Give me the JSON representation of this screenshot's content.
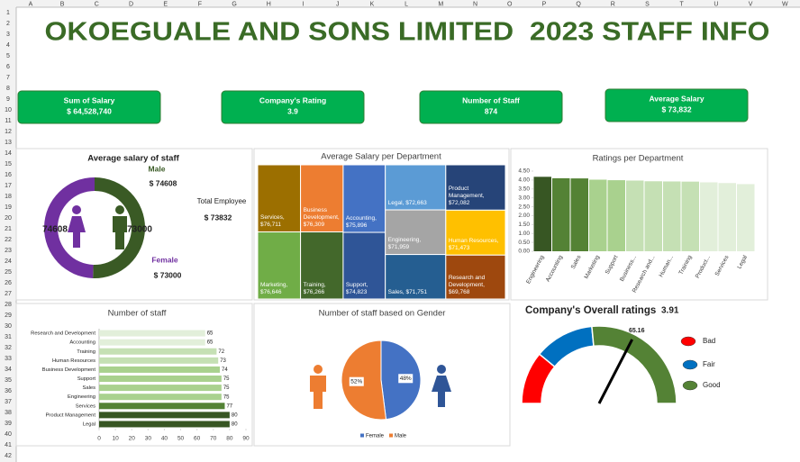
{
  "sheet": {
    "columns": [
      "A",
      "B",
      "C",
      "D",
      "E",
      "F",
      "G",
      "H",
      "I",
      "J",
      "K",
      "L",
      "M",
      "N",
      "O",
      "P",
      "Q",
      "R",
      "S",
      "T",
      "U",
      "V",
      "W"
    ],
    "rows": [
      1,
      2,
      3,
      4,
      5,
      6,
      7,
      8,
      9,
      10,
      11,
      12,
      13,
      14,
      15,
      16,
      17,
      18,
      19,
      20,
      21,
      22,
      23,
      24,
      25,
      26,
      27,
      28,
      29,
      30,
      31,
      32,
      33,
      34,
      35,
      36,
      37,
      38,
      39,
      40,
      41,
      42
    ]
  },
  "header": {
    "title": "OKOEGUALE AND SONS LIMITED  2023 STAFF INFO"
  },
  "kpis": [
    {
      "label": "Sum of Salary",
      "value": "$ 64,528,740"
    },
    {
      "label": "Company's Rating",
      "value": "3.9"
    },
    {
      "label": "Number of Staff",
      "value": "874"
    },
    {
      "label": "Average Salary",
      "value": "$ 73,832"
    }
  ],
  "chart_data": [
    {
      "type": "doughnut",
      "title": "Average salary of staff",
      "categories": [
        "Male",
        "Female"
      ],
      "values": [
        74608,
        73000
      ],
      "value_labels": [
        "$ 74608",
        "$ 73000"
      ],
      "colors": [
        "#3a5a25",
        "#7030a0"
      ],
      "annotations": [
        "Total Employee",
        "$ 73832"
      ]
    },
    {
      "type": "treemap",
      "title": "Average Salary per Department",
      "values": [
        76711,
        76646,
        76309,
        76266,
        75896,
        74823,
        72663,
        71959,
        71751,
        72082,
        71473,
        69768
      ],
      "value_labels": [
        "Services, $76,711",
        "Marketing, $76,646",
        "Business Development, $76,309",
        "Training, $76,266",
        "Accounting, $75,896",
        "Support, $74,823",
        "Legal, $72,663",
        "Engineering, $71,959",
        "Sales, $71,751",
        "Product Management, $72,082",
        "Human Resources, $71,473",
        "Research and Development, $69,768"
      ],
      "colors": [
        "#9c6f00",
        "#70ad47",
        "#ed7d31",
        "#43682b",
        "#4472c4",
        "#2f5597",
        "#5b9bd5",
        "#a5a5a5",
        "#255e91",
        "#264478",
        "#ffc000",
        "#9e480e"
      ]
    },
    {
      "type": "bar",
      "title": "Ratings per Department",
      "categories": [
        "Engineering",
        "Accounting",
        "Sales",
        "Marketing",
        "Support",
        "Business...",
        "Research and...",
        "Human...",
        "Training",
        "Product...",
        "Services",
        "Legal"
      ],
      "values": [
        4.18,
        4.1,
        4.09,
        4.02,
        3.99,
        3.97,
        3.93,
        3.92,
        3.91,
        3.87,
        3.83,
        3.77
      ],
      "colors": [
        "#375623",
        "#548235",
        "#548235",
        "#a9d18e",
        "#a9d18e",
        "#c5e0b4",
        "#c5e0b4",
        "#c5e0b4",
        "#c5e0b4",
        "#e2efda",
        "#e2efda",
        "#e2efda"
      ],
      "ylim": [
        0,
        4.5
      ],
      "yticks": [
        {
          "value": 0,
          "label": "0.00"
        },
        {
          "value": 0.5,
          "label": "0.50"
        },
        {
          "value": 1,
          "label": "1.00"
        },
        {
          "value": 1.5,
          "label": "1.50"
        },
        {
          "value": 2,
          "label": "2.00"
        },
        {
          "value": 2.5,
          "label": "2.50"
        },
        {
          "value": 3,
          "label": "3.00"
        },
        {
          "value": 3.5,
          "label": "3.50"
        },
        {
          "value": 4,
          "label": "4.00"
        },
        {
          "value": 4.5,
          "label": "4.50"
        }
      ]
    },
    {
      "type": "hbar",
      "title": "Number of staff",
      "categories": [
        "Research and Development",
        "Accounting",
        "Training",
        "Human Resources",
        "Business Development",
        "Support",
        "Sales",
        "Engineering",
        "Services",
        "Product Management",
        "Legal"
      ],
      "values": [
        65,
        65,
        72,
        73,
        74,
        75,
        75,
        75,
        77,
        80,
        80
      ],
      "colors": [
        "#e2efda",
        "#e2efda",
        "#c5e0b4",
        "#c5e0b4",
        "#a9d18e",
        "#a9d18e",
        "#a9d18e",
        "#a9d18e",
        "#548235",
        "#375623",
        "#375623"
      ],
      "xlim": [
        0,
        90
      ],
      "xticks": [
        0,
        10,
        20,
        30,
        40,
        50,
        60,
        70,
        80,
        90
      ]
    },
    {
      "type": "pie",
      "title": "Number of staff based on Gender",
      "categories": [
        "Female",
        "Male"
      ],
      "values": [
        48,
        52
      ],
      "value_labels": [
        "48%",
        "52%"
      ],
      "colors": [
        "#4472c4",
        "#ed7d31"
      ],
      "legend": "bottom"
    },
    {
      "type": "gauge",
      "title": "Company's Overall ratings",
      "rating": 3.91,
      "categories": [
        "Bad",
        "Fair",
        "Good"
      ],
      "values": [
        22,
        25,
        53
      ],
      "colors": [
        "#ff0000",
        "#0070c0",
        "#548235"
      ],
      "needle": 65.16,
      "legend": "right"
    }
  ]
}
